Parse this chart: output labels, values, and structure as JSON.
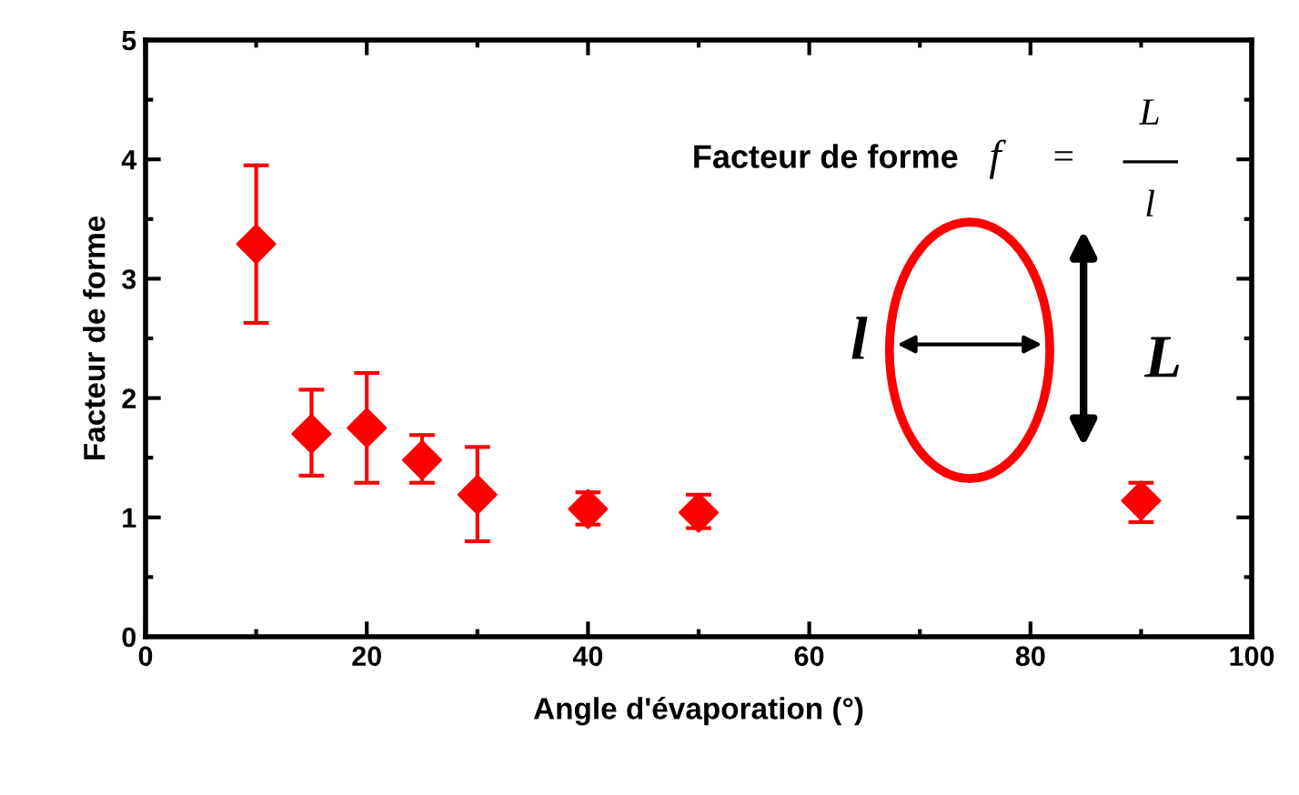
{
  "chart_data": {
    "type": "scatter",
    "xlabel": "Angle d'évaporation (°)",
    "ylabel": "Facteur de forme",
    "x": [
      10,
      15,
      20,
      25,
      30,
      40,
      50,
      90
    ],
    "series": [
      {
        "color": "#ff0000",
        "values": [
          3.29,
          1.7,
          1.75,
          1.48,
          1.19,
          1.07,
          1.04,
          1.14
        ],
        "errors": [
          [
            2.63,
            3.95
          ],
          [
            1.35,
            2.07
          ],
          [
            1.29,
            2.21
          ],
          [
            1.29,
            1.69
          ],
          [
            0.8,
            1.59
          ],
          [
            0.94,
            1.21
          ],
          [
            0.91,
            1.19
          ],
          [
            0.96,
            1.29
          ]
        ]
      }
    ],
    "marker": "diamond",
    "xlim": [
      0,
      100
    ],
    "xticks": [
      0,
      20,
      40,
      60,
      80,
      100
    ],
    "ylim": [
      0,
      5
    ],
    "yticks": [
      0,
      1,
      2,
      3,
      4,
      5
    ],
    "grid": false,
    "annotations": [
      "Facteur de forme",
      "f",
      "=",
      "L",
      "l",
      "l",
      "L"
    ]
  }
}
